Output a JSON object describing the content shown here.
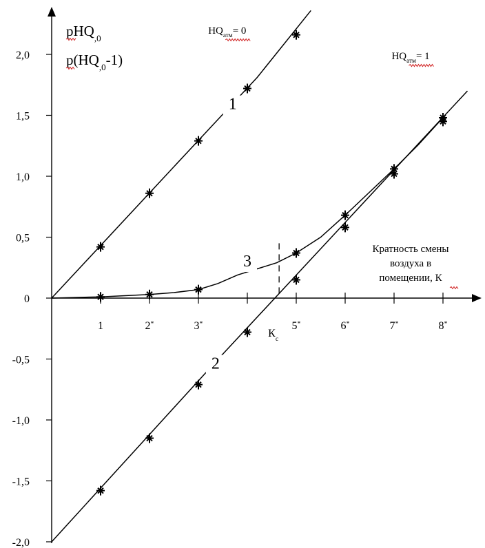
{
  "chart_data": {
    "type": "line",
    "xlabel": [
      "Кратность смены",
      "воздуха в",
      "помещении, К"
    ],
    "ylabel_lines": [
      {
        "main": "pHQ",
        "sub": ",0",
        "rest": ""
      },
      {
        "main": "p(HQ",
        "sub": ",0",
        "rest": "-1)"
      }
    ],
    "xlim": [
      0,
      9.1
    ],
    "ylim": [
      -2.0,
      2.35
    ],
    "x_ticks": [
      {
        "x": 1,
        "label": "1",
        "sup": ""
      },
      {
        "x": 2,
        "label": "2",
        "sup": "*"
      },
      {
        "x": 3,
        "label": "3",
        "sup": "*"
      },
      {
        "x": 4,
        "label": "",
        "sup": ""
      },
      {
        "x": 5,
        "label": "5",
        "sup": "*"
      },
      {
        "x": 6,
        "label": "6",
        "sup": "*"
      },
      {
        "x": 7,
        "label": "7",
        "sup": "*"
      },
      {
        "x": 8,
        "label": "8",
        "sup": "*"
      }
    ],
    "y_ticks": [
      {
        "y": 2.0,
        "label": "2,0"
      },
      {
        "y": 1.5,
        "label": "1,5"
      },
      {
        "y": 1.0,
        "label": "1,0"
      },
      {
        "y": 0.5,
        "label": "0,5"
      },
      {
        "y": 0.0,
        "label": "0"
      },
      {
        "y": -0.5,
        "label": "-0,5"
      },
      {
        "y": -1.0,
        "label": "-1,0"
      },
      {
        "y": -1.5,
        "label": "-1,5"
      },
      {
        "y": -2.0,
        "label": "-2,0"
      }
    ],
    "series": [
      {
        "name": "1",
        "label_at": {
          "x": 3.7,
          "y": 1.55
        },
        "line": [
          [
            0,
            0
          ],
          [
            3.2,
            1.38
          ],
          [
            4.2,
            1.81
          ],
          [
            5.3,
            2.36
          ]
        ],
        "points": [
          [
            1,
            0.42
          ],
          [
            2,
            0.86
          ],
          [
            3,
            1.29
          ],
          [
            4,
            1.72
          ],
          [
            5,
            2.16
          ]
        ]
      },
      {
        "name": "2",
        "label_at": {
          "x": 3.35,
          "y": -0.58
        },
        "line": [
          [
            0,
            -2.0
          ],
          [
            3.45,
            -0.48
          ],
          [
            8.5,
            1.7
          ]
        ],
        "points": [
          [
            1,
            -1.58
          ],
          [
            2,
            -1.15
          ],
          [
            3,
            -0.71
          ],
          [
            4,
            -0.28
          ],
          [
            5,
            0.15
          ],
          [
            6,
            0.58
          ],
          [
            7,
            1.02
          ],
          [
            8,
            1.45
          ]
        ]
      },
      {
        "name": "3",
        "label_at": {
          "x": 4.0,
          "y": 0.26
        },
        "line": [
          [
            0,
            0
          ],
          [
            1,
            0.01
          ],
          [
            2,
            0.03
          ],
          [
            2.5,
            0.045
          ],
          [
            3,
            0.07
          ],
          [
            3.4,
            0.12
          ],
          [
            3.8,
            0.19
          ],
          [
            4.6,
            0.29
          ],
          [
            5,
            0.37
          ],
          [
            5.5,
            0.5
          ],
          [
            6,
            0.68
          ],
          [
            6.5,
            0.87
          ],
          [
            7,
            1.06
          ],
          [
            7.5,
            1.26
          ],
          [
            8,
            1.48
          ]
        ],
        "points": [
          [
            1,
            0.01
          ],
          [
            2,
            0.03
          ],
          [
            3,
            0.07
          ],
          [
            5,
            0.37
          ],
          [
            6,
            0.68
          ],
          [
            7,
            1.06
          ],
          [
            8,
            1.48
          ]
        ]
      }
    ],
    "annotations": [
      {
        "main": "HQ",
        "sub": "атм",
        "rest": "= 0",
        "x": 3.2,
        "y": 2.17
      },
      {
        "main": "HQ",
        "sub": "атм",
        "rest": "= 1",
        "x": 6.95,
        "y": 1.96
      }
    ],
    "kc": {
      "x": 4.65,
      "label": "К",
      "sub": "с",
      "y_top": 0.45
    }
  }
}
